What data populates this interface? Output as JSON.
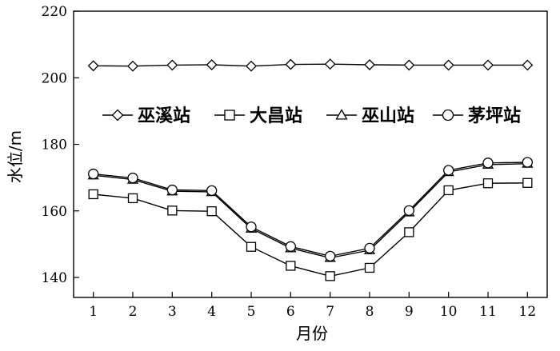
{
  "chart_data": {
    "type": "line",
    "title": "",
    "xlabel": "月份",
    "ylabel": "水位/m",
    "x": [
      1,
      2,
      3,
      4,
      5,
      6,
      7,
      8,
      9,
      10,
      11,
      12
    ],
    "x_ticks": [
      "1",
      "2",
      "3",
      "4",
      "5",
      "6",
      "7",
      "8",
      "9",
      "10",
      "11",
      "12"
    ],
    "y_ticks": [
      "140",
      "160",
      "180",
      "200",
      "220"
    ],
    "xlim": [
      0.5,
      12.5
    ],
    "ylim": [
      134,
      220
    ],
    "grid": false,
    "legend_placement": "middle",
    "series": [
      {
        "name": "巫溪站",
        "marker": "diamond",
        "values": [
          203.6,
          203.5,
          203.8,
          203.9,
          203.5,
          204.0,
          204.1,
          203.9,
          203.8,
          203.8,
          203.8,
          203.8
        ]
      },
      {
        "name": "大昌站",
        "marker": "square",
        "values": [
          165.0,
          163.8,
          160.1,
          159.9,
          149.2,
          143.5,
          140.4,
          142.9,
          153.6,
          166.2,
          168.3,
          168.4
        ]
      },
      {
        "name": "巫山站",
        "marker": "triangle",
        "values": [
          170.7,
          169.4,
          165.9,
          165.7,
          154.7,
          148.8,
          145.9,
          148.2,
          159.6,
          171.7,
          173.9,
          174.2
        ]
      },
      {
        "name": "茅坪站",
        "marker": "circle",
        "values": [
          171.1,
          169.9,
          166.3,
          166.1,
          155.2,
          149.3,
          146.4,
          148.8,
          160.1,
          172.2,
          174.4,
          174.6
        ]
      }
    ]
  }
}
